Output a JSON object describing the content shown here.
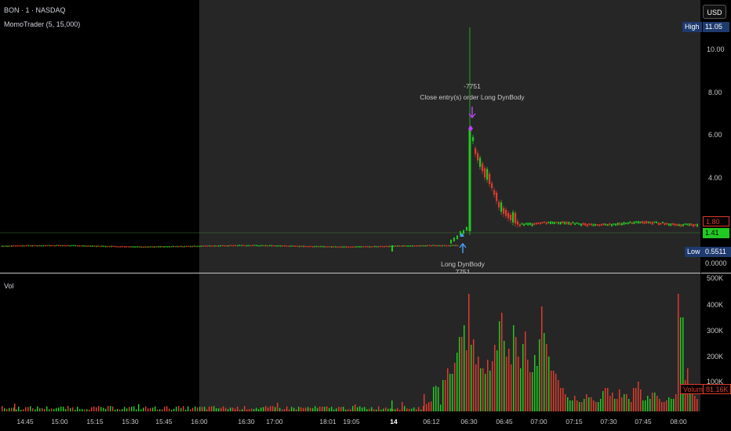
{
  "symbol_title": "BON · 1 · NASDAQ",
  "indicator_title": "MomoTrader (5, 15,000)",
  "volume_title": "Vol",
  "currency_button": "USD",
  "price_axis": {
    "ticks": [
      "10.00",
      "8.00",
      "6.00",
      "4.00",
      "0.0000"
    ],
    "high_label": "High",
    "high_value": "11.05",
    "low_label": "Low",
    "low_value": "0.5511",
    "red_tag": "1.80",
    "green_tag": "1.41"
  },
  "volume_axis": {
    "ticks": [
      "500K",
      "400K",
      "300K",
      "200K",
      "100K"
    ],
    "volume_label": "Volume",
    "volume_value": "81.16K"
  },
  "time_axis": {
    "labels": [
      "14:45",
      "15:00",
      "15:15",
      "15:30",
      "15:45",
      "16:00",
      "16:30",
      "17:00",
      "18:01",
      "19:05",
      "14",
      "06:12",
      "06:30",
      "06:45",
      "07:00",
      "07:15",
      "07:30",
      "07:45",
      "08:00"
    ]
  },
  "trade_markers": {
    "exit_qty": "-7751",
    "exit_label": "Close entry(s) order Long DynBody",
    "entry_label": "Long DynBody",
    "entry_qty": "7751"
  },
  "colors": {
    "up": "#22c922",
    "down": "#e03b2b",
    "high_tag": "#1e3a6e",
    "low_tag": "#1e3a6e",
    "session_bg": "#262626"
  }
}
